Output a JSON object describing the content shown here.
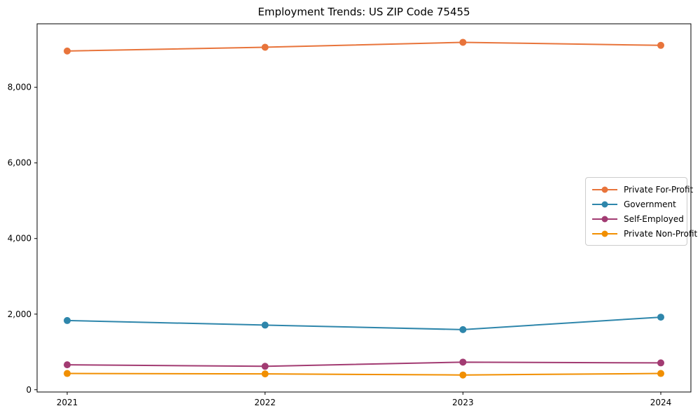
{
  "chart_data": {
    "type": "line",
    "title": "Employment Trends: US ZIP Code 75455",
    "xlabel": "",
    "ylabel": "",
    "x": [
      2021,
      2022,
      2023,
      2024
    ],
    "x_tick_labels": [
      "2021",
      "2022",
      "2023",
      "2024"
    ],
    "series": [
      {
        "name": "Private For-Profit",
        "color": "#E8743B",
        "values": [
          8960,
          9060,
          9190,
          9110
        ]
      },
      {
        "name": "Government",
        "color": "#2E86AB",
        "values": [
          1830,
          1710,
          1590,
          1920
        ]
      },
      {
        "name": "Self-Employed",
        "color": "#A23B72",
        "values": [
          660,
          620,
          730,
          710
        ]
      },
      {
        "name": "Private Non-Profit",
        "color": "#F18F01",
        "values": [
          430,
          420,
          390,
          430
        ]
      }
    ],
    "y_ticks": [
      0,
      2000,
      4000,
      6000,
      8000
    ],
    "y_tick_labels": [
      "0",
      "2,000",
      "4,000",
      "6,000",
      "8,000"
    ],
    "ylim": [
      -60,
      9680
    ],
    "grid": false,
    "legend_position": "center-right",
    "marker": "circle",
    "axis_color": "#000000"
  }
}
